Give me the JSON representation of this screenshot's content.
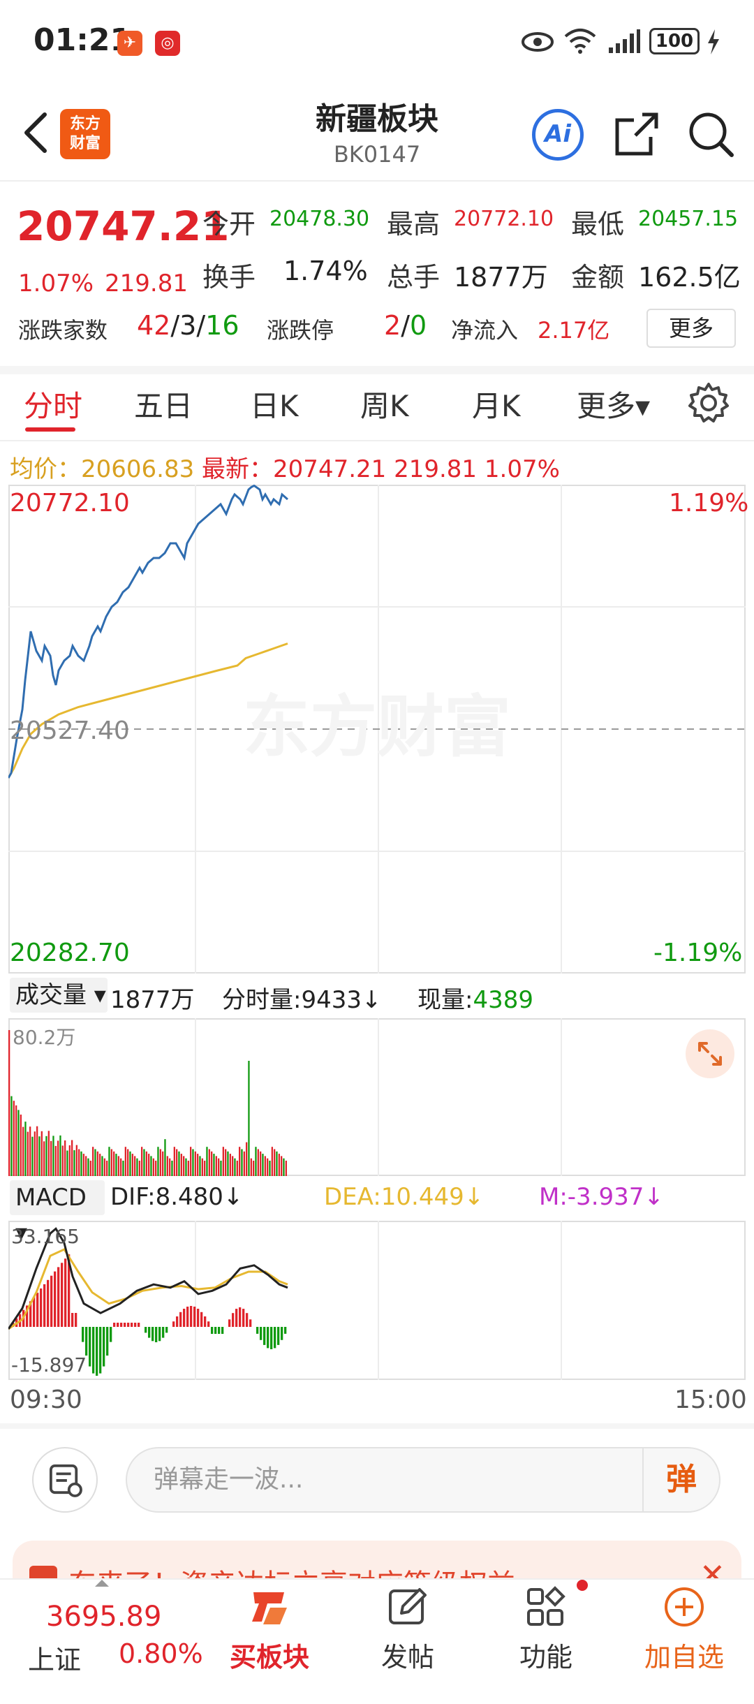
{
  "status": {
    "time": "01:21",
    "battery": "100"
  },
  "header": {
    "logo_line1": "东方",
    "logo_line2": "财富",
    "title": "新疆板块",
    "code": "BK0147",
    "ai_label": "Ai"
  },
  "quote": {
    "price": "20747.21",
    "change_pct": "1.07%",
    "change": "219.81",
    "open_label": "今开",
    "open": "20478.30",
    "high_label": "最高",
    "high": "20772.10",
    "low_label": "最低",
    "low": "20457.15",
    "turnover_label": "换手",
    "turnover": "1.74%",
    "volume_label": "总手",
    "volume": "1877万",
    "amount_label": "金额",
    "amount": "162.5亿",
    "breadth_label": "涨跌家数",
    "breadth_up": "42",
    "breadth_flat": "3",
    "breadth_down": "16",
    "breadth_sep": "/",
    "limit_label": "涨跌停",
    "limit_up": "2",
    "limit_down": "0",
    "inflow_label": "净流入",
    "inflow": "2.17亿",
    "more_label": "更多"
  },
  "tabs": [
    {
      "label": "分时"
    },
    {
      "label": "五日"
    },
    {
      "label": "日K"
    },
    {
      "label": "周K"
    },
    {
      "label": "月K"
    },
    {
      "label": "更多▾"
    }
  ],
  "info_line": {
    "avg_label": "均价：",
    "avg": "20606.83",
    "latest_label": "最新：",
    "latest": "20747.21",
    "change": "219.81",
    "change_pct": "1.07%"
  },
  "chart": {
    "max_price": "20772.10",
    "max_pct": "1.19%",
    "mid_price": "20527.40",
    "min_price": "20282.70",
    "min_pct": "-1.19%",
    "watermark": "东方财富"
  },
  "volume_panel": {
    "select_label": "成交量 ▾",
    "total": "1877万",
    "tick_label": "分时量:",
    "tick": "9433↓",
    "now_label": "现量:",
    "now": "4389",
    "max_label": "80.2万"
  },
  "macd_panel": {
    "select_label": "MACD ▾",
    "dif": "DIF:8.480↓",
    "dea": "DEA:10.449↓",
    "m": "M:-3.937↓",
    "max_label": "33.165",
    "min_label": "-15.897"
  },
  "time_axis": {
    "start": "09:30",
    "end": "15:00"
  },
  "danmaku": {
    "placeholder": "弹幕走一波...",
    "send": "弹"
  },
  "promo": {
    "text": "东来了！资产达标立享对应等级权益"
  },
  "bottom_nav": {
    "index_value": "3695.89",
    "index_name": "上证",
    "index_pct": "0.80%",
    "items": [
      {
        "label": "买板块"
      },
      {
        "label": "发帖"
      },
      {
        "label": "功能"
      },
      {
        "label": "加自选"
      }
    ]
  },
  "colors": {
    "up_red": "#e0242b",
    "down_green": "#109a10",
    "price_line": "#2f6db0",
    "avg_line": "#e6b830",
    "accent_orange": "#f05a14",
    "ai_blue": "#2d6fe0",
    "macd_dea": "#e6b830",
    "macd_m": "#c030c8"
  }
}
